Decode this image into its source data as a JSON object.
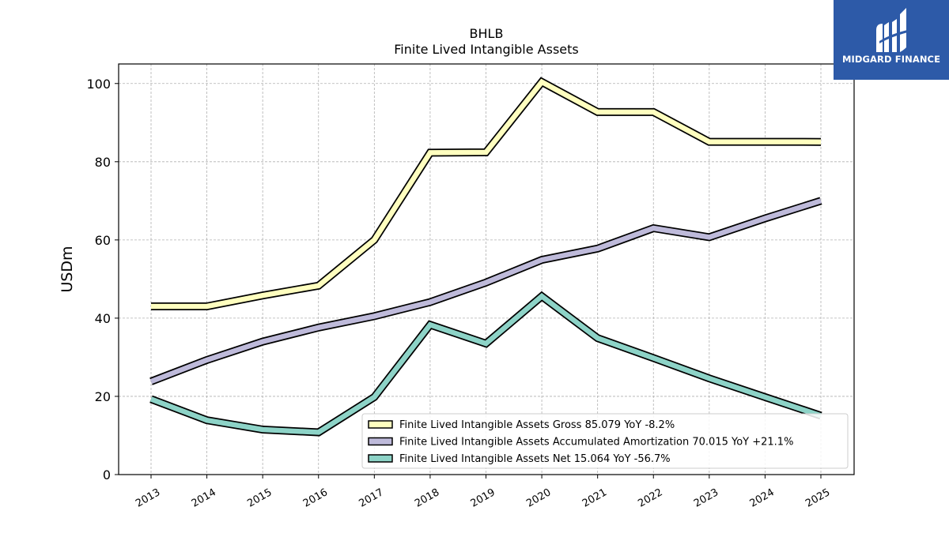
{
  "chart_data": {
    "type": "line",
    "title": "BHLB",
    "subtitle": "Finite Lived Intangible Assets",
    "ylabel": "USDm",
    "xlabel": "",
    "ylim": [
      0,
      105
    ],
    "yticks": [
      0,
      20,
      40,
      60,
      80,
      100
    ],
    "grid": true,
    "legend_position": "bottom-right",
    "x": [
      "2013",
      "2014",
      "2015",
      "2016",
      "2017",
      "2018",
      "2019",
      "2020",
      "2021",
      "2022",
      "2023",
      "2024",
      "2025"
    ],
    "series": [
      {
        "name": "Finite Lived Intangible Assets Gross",
        "legend_label": "Finite Lived Intangible Assets Gross  85.079 YoY -8.2%",
        "color": "#ffffbf",
        "values": [
          43.0,
          43.0,
          45.8,
          48.3,
          60.0,
          82.3,
          82.4,
          100.4,
          92.7,
          92.7,
          85.1,
          85.1,
          85.079
        ]
      },
      {
        "name": "Finite Lived Intangible Assets Accumulated Amortization",
        "legend_label": "Finite Lived Intangible Assets Accumulated Amortization  70.015 YoY +21.1%",
        "color": "#bebada",
        "values": [
          23.8,
          29.3,
          34.0,
          37.6,
          40.5,
          44.1,
          49.1,
          54.9,
          57.8,
          63.0,
          60.7,
          65.5,
          70.015
        ]
      },
      {
        "name": "Finite Lived Intangible Assets Net",
        "legend_label": "Finite Lived Intangible Assets Net  15.064 YoY -56.7%",
        "color": "#8dd3c7",
        "values": [
          19.3,
          13.9,
          11.5,
          10.8,
          19.8,
          38.3,
          33.5,
          45.6,
          34.9,
          29.8,
          24.6,
          19.8,
          15.064
        ]
      }
    ]
  },
  "logo": {
    "text": "MIDGARD FINANCE",
    "background": "#2d5aa8"
  }
}
